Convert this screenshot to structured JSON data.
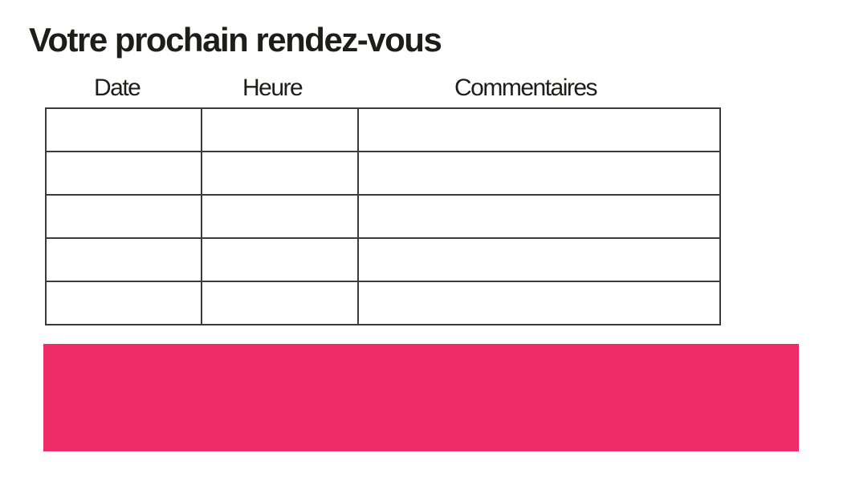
{
  "page": {
    "title": "Votre prochain rendez-vous",
    "background_color": "#ffffff",
    "text_color": "#1d1d1b"
  },
  "table": {
    "headers": [
      {
        "label": "Date"
      },
      {
        "label": "Heure"
      },
      {
        "label": "Commentaires"
      }
    ],
    "rows": [
      [
        "",
        "",
        ""
      ],
      [
        "",
        "",
        ""
      ],
      [
        "",
        "",
        ""
      ],
      [
        "",
        "",
        ""
      ],
      [
        "",
        "",
        ""
      ]
    ],
    "border_color": "#3b3b3b"
  },
  "footer_band": {
    "color": "#ee2c67"
  }
}
